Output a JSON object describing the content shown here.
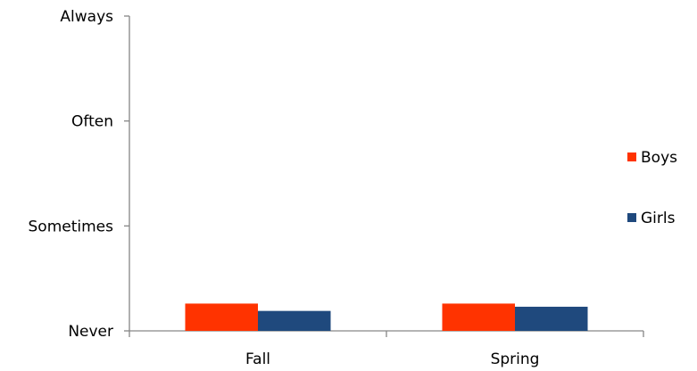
{
  "chart_data": {
    "type": "bar",
    "categories": [
      "Fall",
      "Spring"
    ],
    "series": [
      {
        "name": "Boys",
        "color": "#ff3300",
        "values": [
          0.26,
          0.26
        ]
      },
      {
        "name": "Girls",
        "color": "#1f497d",
        "values": [
          0.19,
          0.23
        ]
      }
    ],
    "y_ticks": [
      {
        "value": 0,
        "label": "Never"
      },
      {
        "value": 1,
        "label": "Sometimes"
      },
      {
        "value": 2,
        "label": "Often"
      },
      {
        "value": 3,
        "label": "Always"
      }
    ],
    "ylim": [
      0,
      3
    ],
    "xlabel": "",
    "ylabel": "",
    "title": "",
    "legend_position": "right",
    "grid": false
  }
}
